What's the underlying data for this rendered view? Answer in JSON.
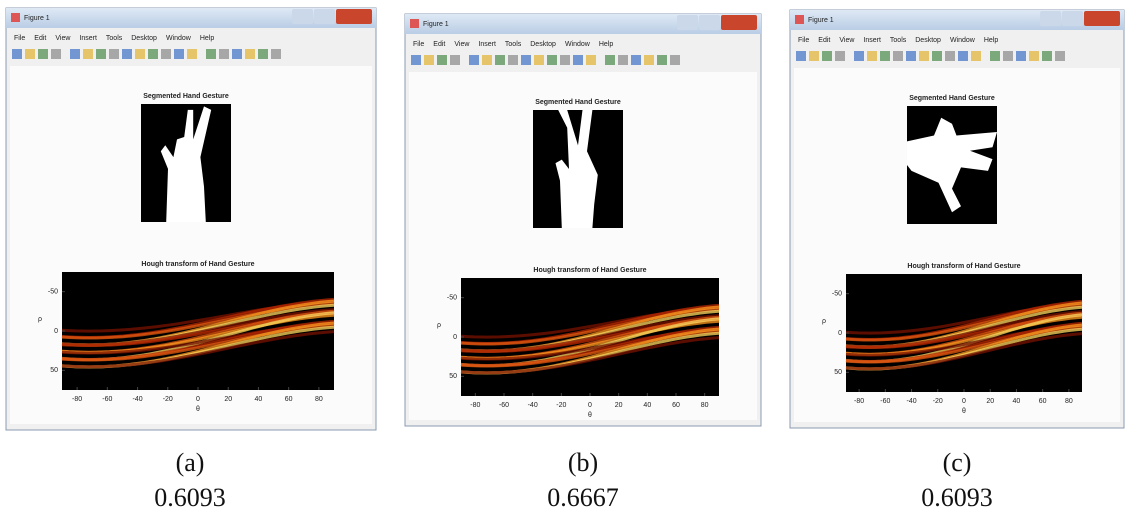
{
  "panels": [
    {
      "window_title": "Figure 1",
      "menu": [
        "File",
        "Edit",
        "View",
        "Insert",
        "Tools",
        "Desktop",
        "Window",
        "Help"
      ],
      "image_title": "Segmented Hand Gesture",
      "hough_title": "Hough transform of Hand Gesture",
      "y_label": "ρ",
      "x_label": "θ",
      "yticks": [
        -50,
        0,
        50
      ],
      "xticks": [
        -80,
        -60,
        -40,
        -20,
        0,
        20,
        40,
        60,
        80
      ],
      "caption": "(a)",
      "score": "0.6093"
    },
    {
      "window_title": "Figure 1",
      "menu": [
        "File",
        "Edit",
        "View",
        "Insert",
        "Tools",
        "Desktop",
        "Window",
        "Help"
      ],
      "image_title": "Segmented Hand Gesture",
      "hough_title": "Hough transform of Hand Gesture",
      "y_label": "ρ",
      "x_label": "θ",
      "yticks": [
        -50,
        0,
        50
      ],
      "xticks": [
        -80,
        -60,
        -40,
        -20,
        0,
        20,
        40,
        60,
        80
      ],
      "caption": "(b)",
      "score": "0.6667"
    },
    {
      "window_title": "Figure 1",
      "menu": [
        "File",
        "Edit",
        "View",
        "Insert",
        "Tools",
        "Desktop",
        "Window",
        "Help"
      ],
      "image_title": "Segmented Hand Gesture",
      "hough_title": "Hough transform of Hand Gesture",
      "y_label": "ρ",
      "x_label": "θ",
      "yticks": [
        -50,
        0,
        50
      ],
      "xticks": [
        -80,
        -60,
        -40,
        -20,
        0,
        20,
        40,
        60,
        80
      ],
      "caption": "(c)",
      "score": "0.6093"
    }
  ]
}
